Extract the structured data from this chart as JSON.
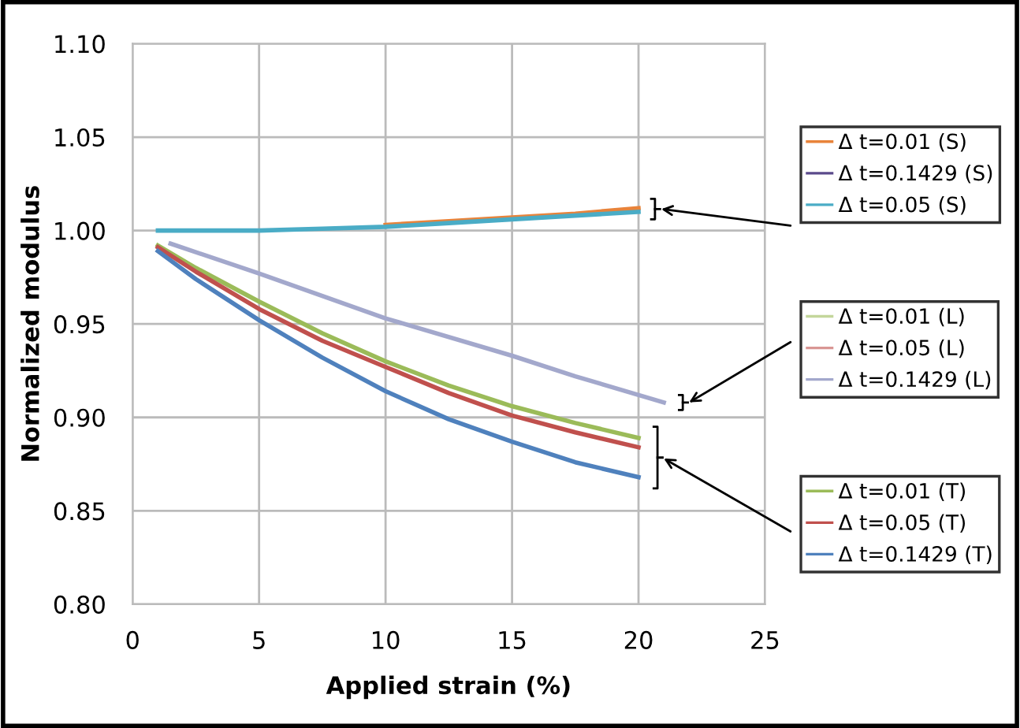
{
  "chart_data": {
    "type": "line",
    "xlabel": "Applied strain (%)",
    "ylabel": "Normalized modulus",
    "xlim": [
      0,
      25
    ],
    "xticks": [
      0,
      5,
      10,
      15,
      20,
      25
    ],
    "ylim": [
      0.8,
      1.1
    ],
    "yticks": [
      {
        "value": 0.8,
        "label": "0.80"
      },
      {
        "value": 0.85,
        "label": "0.85"
      },
      {
        "value": 0.9,
        "label": "0.90"
      },
      {
        "value": 0.95,
        "label": "0.95"
      },
      {
        "value": 1.0,
        "label": "1.00"
      },
      {
        "value": 1.05,
        "label": "1.05"
      },
      {
        "value": 1.1,
        "label": "1.10"
      }
    ],
    "grid": true,
    "legend": "right",
    "marker": "none",
    "line_style": "solid",
    "x": [
      1,
      2.5,
      5,
      7.5,
      10,
      12.5,
      15,
      17.5,
      20
    ],
    "series": [
      {
        "name": "Δ t=0.01 (S)",
        "color": "#e8833a",
        "values": [
          null,
          null,
          null,
          null,
          1.003,
          1.005,
          1.007,
          1.009,
          1.012
        ]
      },
      {
        "name": "Δ t=0.1429 (S)",
        "color": "#5b4a8b",
        "values": [
          null,
          null,
          null,
          null,
          null,
          null,
          null,
          null,
          null
        ]
      },
      {
        "name": "Δ t=0.05 (S)",
        "color": "#4aacc6",
        "values": [
          1.0,
          1.0,
          1.0,
          1.001,
          1.002,
          1.004,
          1.006,
          1.008,
          1.01
        ]
      },
      {
        "name": "Δ t=0.01 (L)",
        "color": "#c3d69b",
        "values": [
          null,
          null,
          null,
          null,
          null,
          null,
          null,
          null,
          null
        ]
      },
      {
        "name": "Δ t=0.05 (L)",
        "color": "#d99694",
        "values": [
          null,
          null,
          null,
          null,
          null,
          null,
          null,
          null,
          null
        ]
      },
      {
        "name": "Δ t=0.1429 (L)",
        "color": "#a3a8cc",
        "x": [
          1.5,
          5,
          10,
          15,
          17.5,
          21
        ],
        "values": [
          0.993,
          0.977,
          0.953,
          0.933,
          0.922,
          0.908
        ]
      },
      {
        "name": "Δ t=0.01 (T)",
        "color": "#9bbb59",
        "values": [
          0.992,
          0.98,
          0.962,
          0.945,
          0.93,
          0.917,
          0.906,
          0.897,
          0.889
        ]
      },
      {
        "name": "Δ t=0.05 (T)",
        "color": "#c0504d",
        "values": [
          0.991,
          0.978,
          0.958,
          0.941,
          0.927,
          0.913,
          0.901,
          0.892,
          0.884
        ]
      },
      {
        "name": "Δ t=0.1429 (T)",
        "color": "#4f81bd",
        "values": [
          0.989,
          0.974,
          0.952,
          0.932,
          0.914,
          0.899,
          0.887,
          0.876,
          0.868
        ]
      }
    ]
  }
}
